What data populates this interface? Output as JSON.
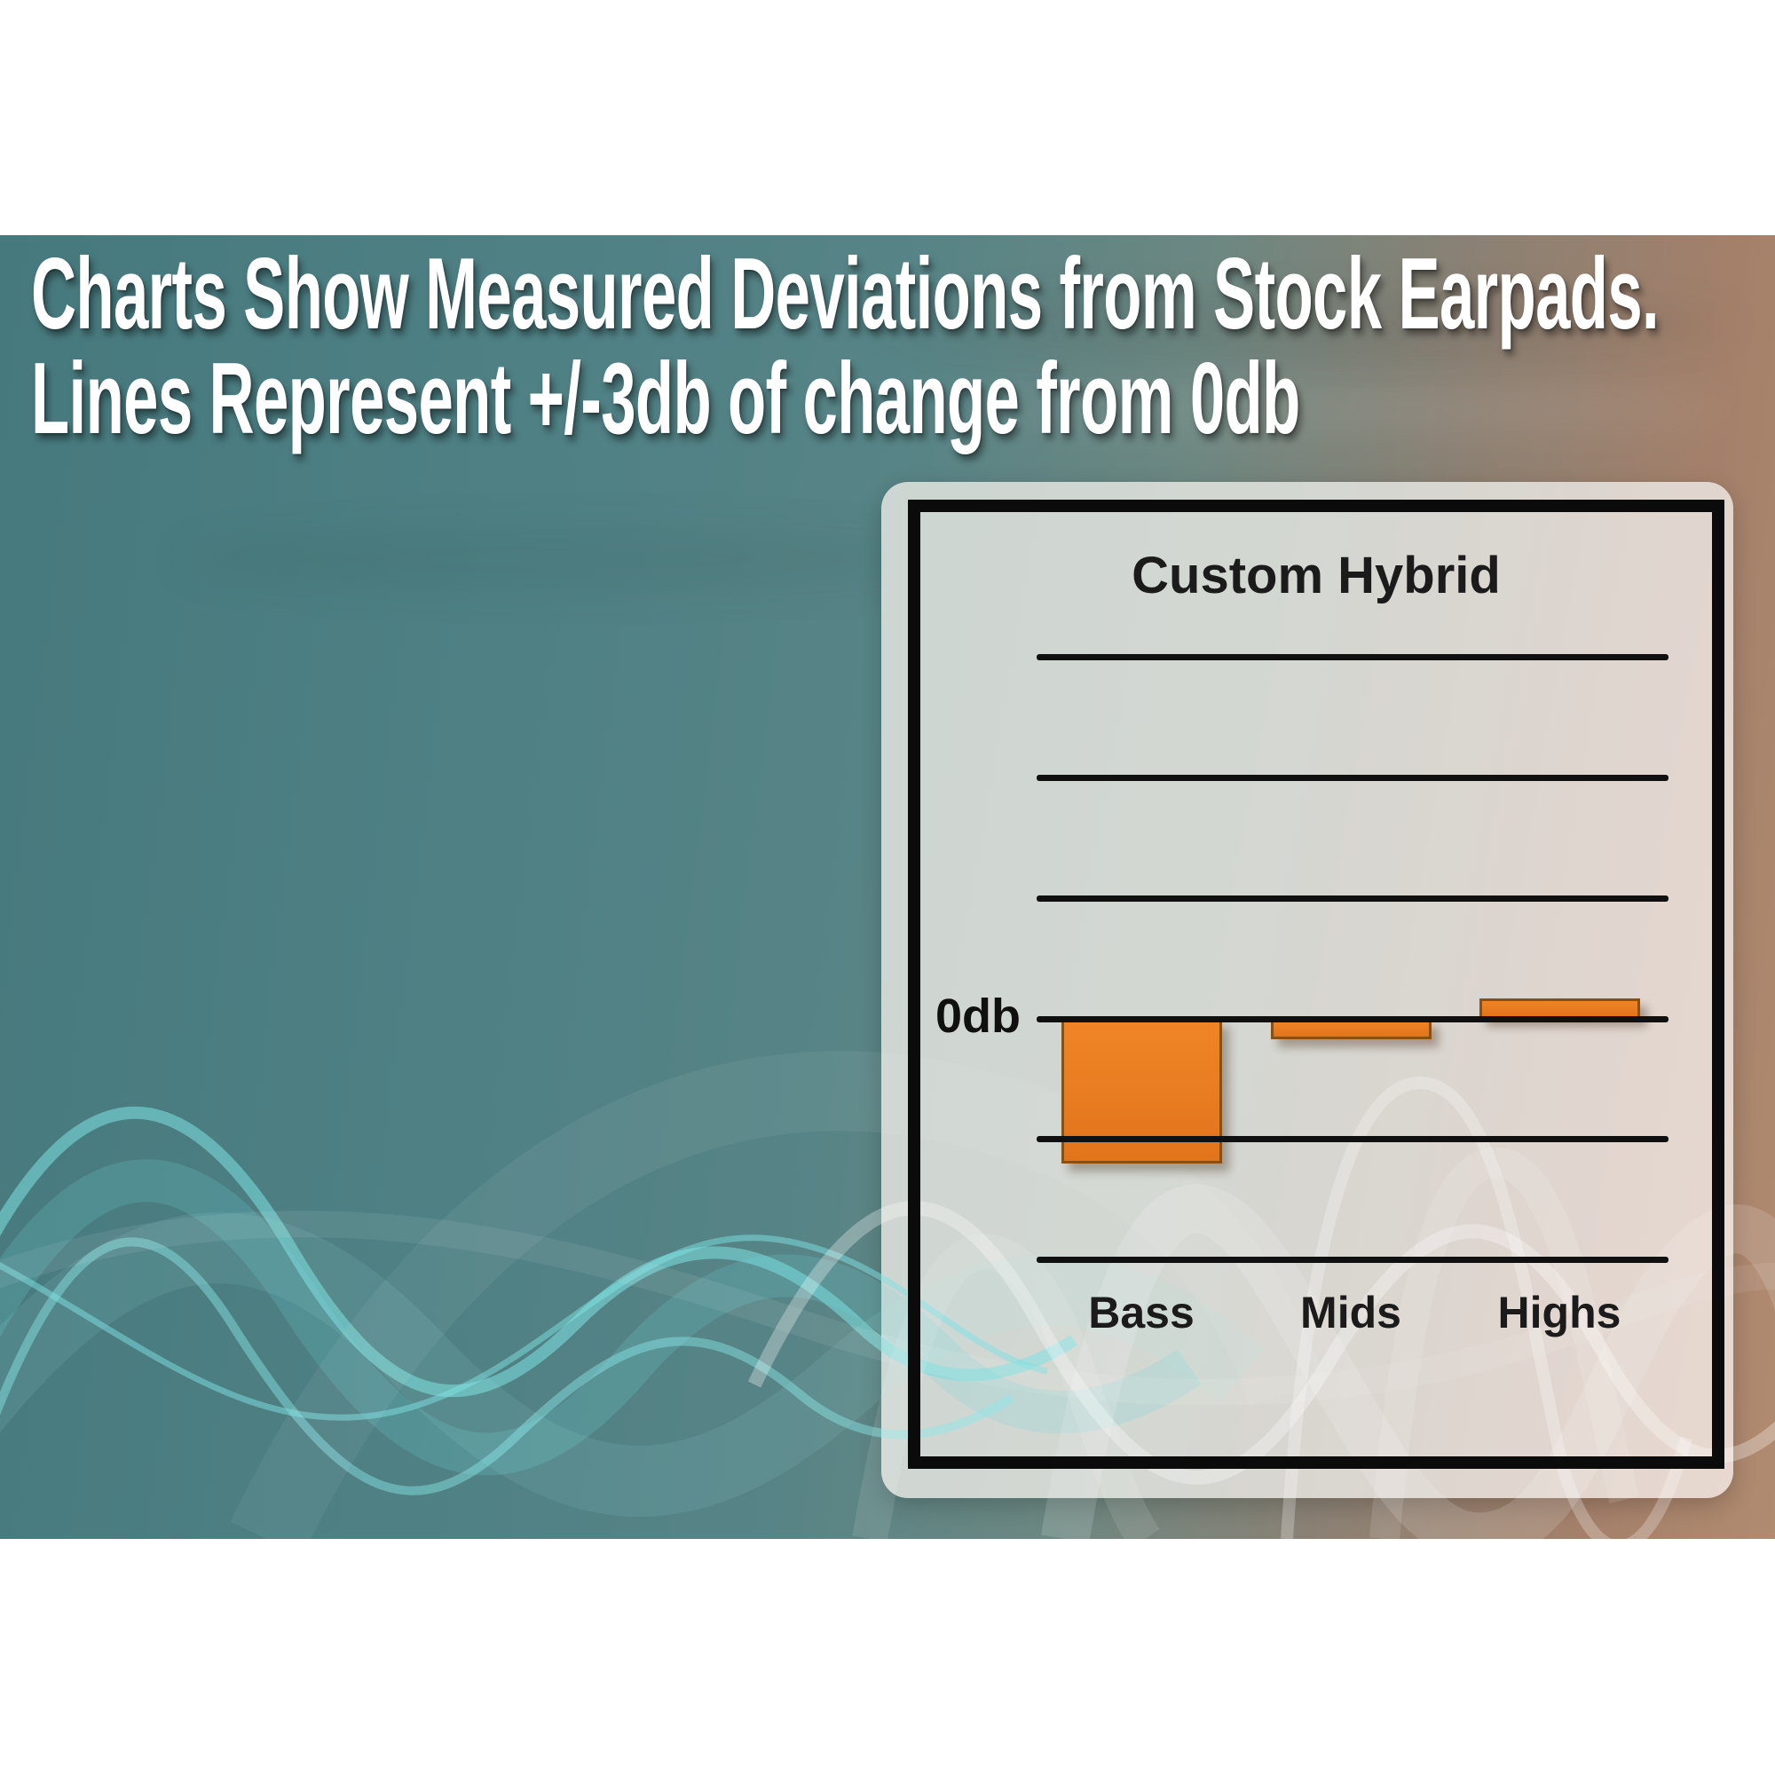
{
  "header": {
    "line1": "Charts Show Measured Deviations from Stock Earpads.",
    "line2": "Lines Represent +/-3db of change from 0db",
    "text_color": "#ffffff"
  },
  "background": {
    "teal_left": "#4b7d80",
    "brown_right": "#b18b70",
    "wave_cyan": "#7de2e2",
    "wave_white": "#ffffff",
    "letterbox": "#ffffff"
  },
  "panel": {
    "bg_left": "#cdd6d2",
    "bg_right": "#e8d8cf",
    "frame_color": "#0b0b0b"
  },
  "chart_data": {
    "type": "bar",
    "title": "Custom Hybrid",
    "categories": [
      "Bass",
      "Mids",
      "Highs"
    ],
    "values": [
      -3.6,
      -0.5,
      0.5
    ],
    "unit": "db",
    "zero_label": "0db",
    "gridlines_db": [
      9,
      6,
      3,
      0,
      -3,
      -6
    ],
    "grid_step_db": 3,
    "ylabel": "",
    "xlabel": "",
    "legend": "none",
    "grid": "horizontal-lines",
    "bar_color": "#e8791f",
    "bar_border_color": "#8a4f12",
    "line_color": "#101010"
  }
}
